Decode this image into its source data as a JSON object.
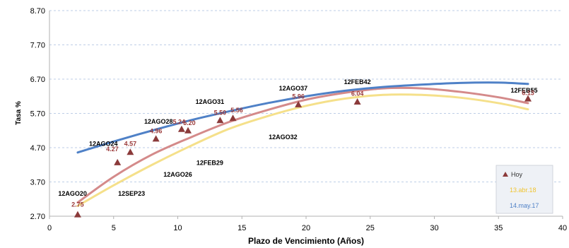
{
  "chart_data": {
    "type": "scatter",
    "xlabel": "Plazo de Vencimiento  (Años)",
    "ylabel": "Tasa %",
    "xlim": [
      0,
      40
    ],
    "ylim": [
      2.7,
      8.7
    ],
    "x_ticks": [
      "0",
      "5",
      "10",
      "15",
      "20",
      "25",
      "30",
      "35",
      "40"
    ],
    "y_ticks": [
      "2.70",
      "3.70",
      "4.70",
      "5.70",
      "6.70",
      "7.70",
      "8.70"
    ],
    "grid": true,
    "legend_position": "bottom-right",
    "series": [
      {
        "name": "Hoy",
        "kind": "points",
        "color": "#8b3a3a",
        "points": [
          {
            "x": 2.2,
            "y": 2.75
          },
          {
            "x": 5.3,
            "y": 4.27
          },
          {
            "x": 6.3,
            "y": 4.57
          },
          {
            "x": 8.3,
            "y": 4.96
          },
          {
            "x": 10.3,
            "y": 5.24
          },
          {
            "x": 10.8,
            "y": 5.2
          },
          {
            "x": 13.3,
            "y": 5.5
          },
          {
            "x": 14.3,
            "y": 5.56
          },
          {
            "x": 19.4,
            "y": 5.96
          },
          {
            "x": 24.0,
            "y": 6.04
          },
          {
            "x": 37.3,
            "y": 6.13
          }
        ]
      },
      {
        "name": "",
        "kind": "curve",
        "color": "#d48a8a",
        "points": [
          {
            "x": 2.2,
            "y": 3.1
          },
          {
            "x": 5,
            "y": 3.85
          },
          {
            "x": 8,
            "y": 4.5
          },
          {
            "x": 11,
            "y": 5.0
          },
          {
            "x": 14,
            "y": 5.45
          },
          {
            "x": 17,
            "y": 5.8
          },
          {
            "x": 20,
            "y": 6.1
          },
          {
            "x": 23,
            "y": 6.3
          },
          {
            "x": 26,
            "y": 6.43
          },
          {
            "x": 29,
            "y": 6.43
          },
          {
            "x": 32,
            "y": 6.33
          },
          {
            "x": 35,
            "y": 6.17
          },
          {
            "x": 37.3,
            "y": 6.0
          }
        ]
      },
      {
        "name": "13.abr.18",
        "kind": "curve",
        "color": "#f5e08a",
        "points": [
          {
            "x": 2.2,
            "y": 3.0
          },
          {
            "x": 5,
            "y": 3.6
          },
          {
            "x": 8,
            "y": 4.2
          },
          {
            "x": 11,
            "y": 4.75
          },
          {
            "x": 14,
            "y": 5.25
          },
          {
            "x": 17,
            "y": 5.62
          },
          {
            "x": 20,
            "y": 5.92
          },
          {
            "x": 23,
            "y": 6.13
          },
          {
            "x": 26,
            "y": 6.24
          },
          {
            "x": 29,
            "y": 6.24
          },
          {
            "x": 32,
            "y": 6.16
          },
          {
            "x": 35,
            "y": 6.0
          },
          {
            "x": 37.3,
            "y": 5.82
          }
        ]
      },
      {
        "name": "14.may.17",
        "kind": "curve",
        "color": "#4f81c7",
        "points": [
          {
            "x": 2.2,
            "y": 4.56
          },
          {
            "x": 5,
            "y": 4.88
          },
          {
            "x": 8,
            "y": 5.2
          },
          {
            "x": 11,
            "y": 5.5
          },
          {
            "x": 14,
            "y": 5.76
          },
          {
            "x": 17,
            "y": 6.0
          },
          {
            "x": 20,
            "y": 6.2
          },
          {
            "x": 23,
            "y": 6.36
          },
          {
            "x": 26,
            "y": 6.47
          },
          {
            "x": 29,
            "y": 6.54
          },
          {
            "x": 32,
            "y": 6.59
          },
          {
            "x": 35,
            "y": 6.6
          },
          {
            "x": 37.3,
            "y": 6.56
          }
        ]
      }
    ],
    "bond_labels": [
      {
        "text": "12AGO20",
        "x": 1.8,
        "y": 3.3
      },
      {
        "text": "12AGO24",
        "x": 4.2,
        "y": 4.75
      },
      {
        "text": "12AGO28",
        "x": 8.5,
        "y": 5.4
      },
      {
        "text": "12AGO31",
        "x": 12.5,
        "y": 5.98
      },
      {
        "text": "12AGO37",
        "x": 19.0,
        "y": 6.37
      },
      {
        "text": "12FEB42",
        "x": 24.0,
        "y": 6.56
      },
      {
        "text": "12FEB55",
        "x": 37.0,
        "y": 6.31
      },
      {
        "text": "12SEP23",
        "x": 6.4,
        "y": 3.3
      },
      {
        "text": "12AGO26",
        "x": 10.0,
        "y": 3.85
      },
      {
        "text": "12FEB29",
        "x": 12.5,
        "y": 4.2
      },
      {
        "text": "12AGO32",
        "x": 18.2,
        "y": 4.95
      }
    ],
    "value_labels": [
      {
        "text": "2.75",
        "x": 2.2,
        "y": 2.98
      },
      {
        "text": "4.27",
        "x": 4.9,
        "y": 4.6
      },
      {
        "text": "4.57",
        "x": 6.3,
        "y": 4.75
      },
      {
        "text": "4.96",
        "x": 8.3,
        "y": 5.12
      },
      {
        "text": "5.24",
        "x": 10.1,
        "y": 5.39
      },
      {
        "text": "5.20",
        "x": 10.9,
        "y": 5.36
      },
      {
        "text": "5.50",
        "x": 13.3,
        "y": 5.66
      },
      {
        "text": "5.56",
        "x": 14.6,
        "y": 5.73
      },
      {
        "text": "5.96",
        "x": 19.4,
        "y": 6.13
      },
      {
        "text": "6.04",
        "x": 24.0,
        "y": 6.22
      },
      {
        "text": "6.13",
        "x": 37.3,
        "y": 6.24
      }
    ]
  }
}
